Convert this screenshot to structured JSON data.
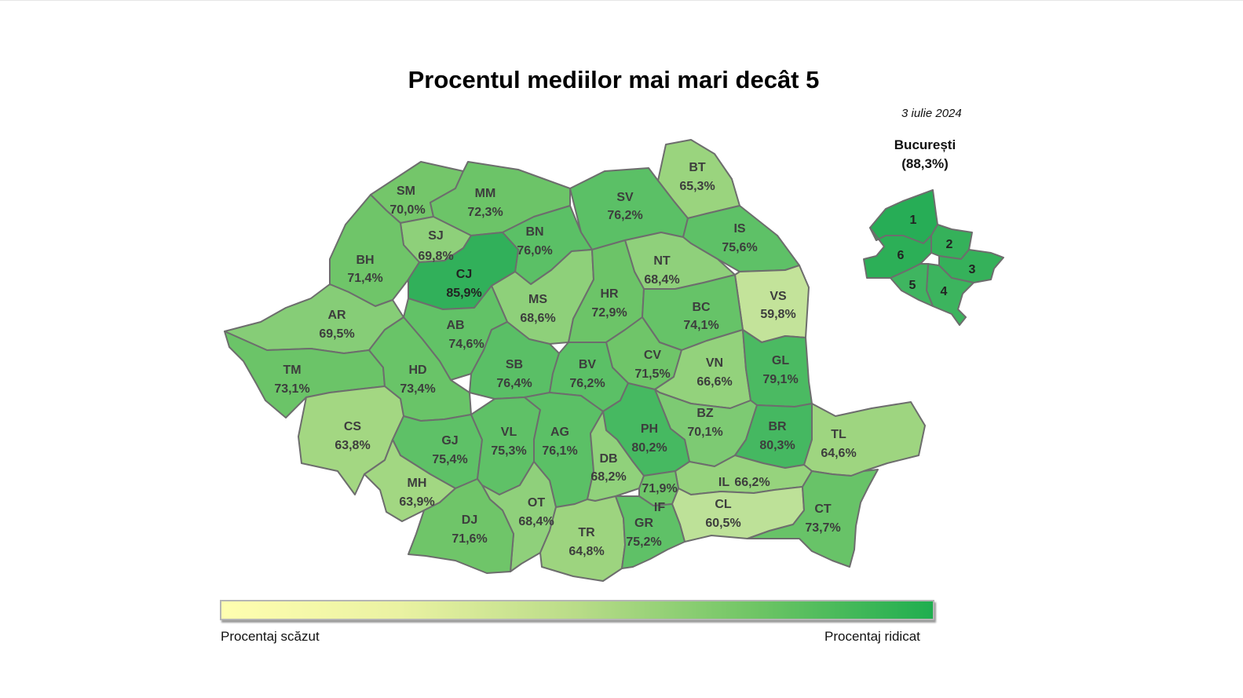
{
  "title": "Procentul mediilor mai mari decât 5",
  "date": "3 iulie 2024",
  "bucuresti": {
    "name": "București",
    "value": "(88,3%)",
    "sectors": [
      {
        "id": "1",
        "color": "#27ad56"
      },
      {
        "id": "2",
        "color": "#35b15a"
      },
      {
        "id": "3",
        "color": "#35b15a"
      },
      {
        "id": "4",
        "color": "#3cb45e"
      },
      {
        "id": "5",
        "color": "#3fb560"
      },
      {
        "id": "6",
        "color": "#2caf57"
      }
    ]
  },
  "counties": [
    {
      "code": "SM",
      "value": "70,0%",
      "color": "#74c66a"
    },
    {
      "code": "MM",
      "value": "72,3%",
      "color": "#6cc468"
    },
    {
      "code": "BT",
      "value": "65,3%",
      "color": "#9ad47e"
    },
    {
      "code": "SV",
      "value": "76,2%",
      "color": "#5bc066"
    },
    {
      "code": "SJ",
      "value": "69,8%",
      "color": "#8ed07a"
    },
    {
      "code": "BN",
      "value": "76,0%",
      "color": "#5bc066"
    },
    {
      "code": "IS",
      "value": "75,6%",
      "color": "#5ec167"
    },
    {
      "code": "BH",
      "value": "71,4%",
      "color": "#6fc569"
    },
    {
      "code": "CJ",
      "value": "85,9%",
      "color": "#31b05a"
    },
    {
      "code": "NT",
      "value": "68,4%",
      "color": "#8fd07b"
    },
    {
      "code": "MS",
      "value": "68,6%",
      "color": "#8ed07a"
    },
    {
      "code": "HR",
      "value": "72,9%",
      "color": "#6cc468"
    },
    {
      "code": "VS",
      "value": "59,8%",
      "color": "#c3e39a"
    },
    {
      "code": "AR",
      "value": "69,5%",
      "color": "#86cd77"
    },
    {
      "code": "AB",
      "value": "74,6%",
      "color": "#62c267"
    },
    {
      "code": "BC",
      "value": "74,1%",
      "color": "#66c368"
    },
    {
      "code": "CV",
      "value": "71,5%",
      "color": "#6fc569"
    },
    {
      "code": "TM",
      "value": "73,1%",
      "color": "#6bc468"
    },
    {
      "code": "HD",
      "value": "73,4%",
      "color": "#69c468"
    },
    {
      "code": "SB",
      "value": "76,4%",
      "color": "#5abf66"
    },
    {
      "code": "BV",
      "value": "76,2%",
      "color": "#5bc066"
    },
    {
      "code": "VN",
      "value": "66,6%",
      "color": "#93d27c"
    },
    {
      "code": "GL",
      "value": "79,1%",
      "color": "#4bba62"
    },
    {
      "code": "CS",
      "value": "63,8%",
      "color": "#a3d782"
    },
    {
      "code": "BZ",
      "value": "70,1%",
      "color": "#7dca73"
    },
    {
      "code": "GJ",
      "value": "75,4%",
      "color": "#5ec167"
    },
    {
      "code": "VL",
      "value": "75,3%",
      "color": "#5fc167"
    },
    {
      "code": "AG",
      "value": "76,1%",
      "color": "#5bc066"
    },
    {
      "code": "PH",
      "value": "80,2%",
      "color": "#46b961"
    },
    {
      "code": "BR",
      "value": "80,3%",
      "color": "#45b861"
    },
    {
      "code": "TL",
      "value": "64,6%",
      "color": "#9ed580"
    },
    {
      "code": "DB",
      "value": "68,2%",
      "color": "#90d17b"
    },
    {
      "code": "MH",
      "value": "63,9%",
      "color": "#a2d782"
    },
    {
      "code": "IL",
      "value": "66,2%",
      "color": "#96d37d"
    },
    {
      "code": "IF",
      "value": "71,9%",
      "color": "#6ec569"
    },
    {
      "code": "OT",
      "value": "68,4%",
      "color": "#8fd07b"
    },
    {
      "code": "CL",
      "value": "60,5%",
      "color": "#bde198"
    },
    {
      "code": "DJ",
      "value": "71,6%",
      "color": "#6fc569"
    },
    {
      "code": "TR",
      "value": "64,8%",
      "color": "#9dd47f"
    },
    {
      "code": "GR",
      "value": "75,2%",
      "color": "#5fc167"
    },
    {
      "code": "CT",
      "value": "73,7%",
      "color": "#68c368"
    }
  ],
  "legend": {
    "low_label": "Procentaj scăzut",
    "high_label": "Procentaj ridicat",
    "low_color": "#fffeb0",
    "high_color": "#1fae4f"
  }
}
